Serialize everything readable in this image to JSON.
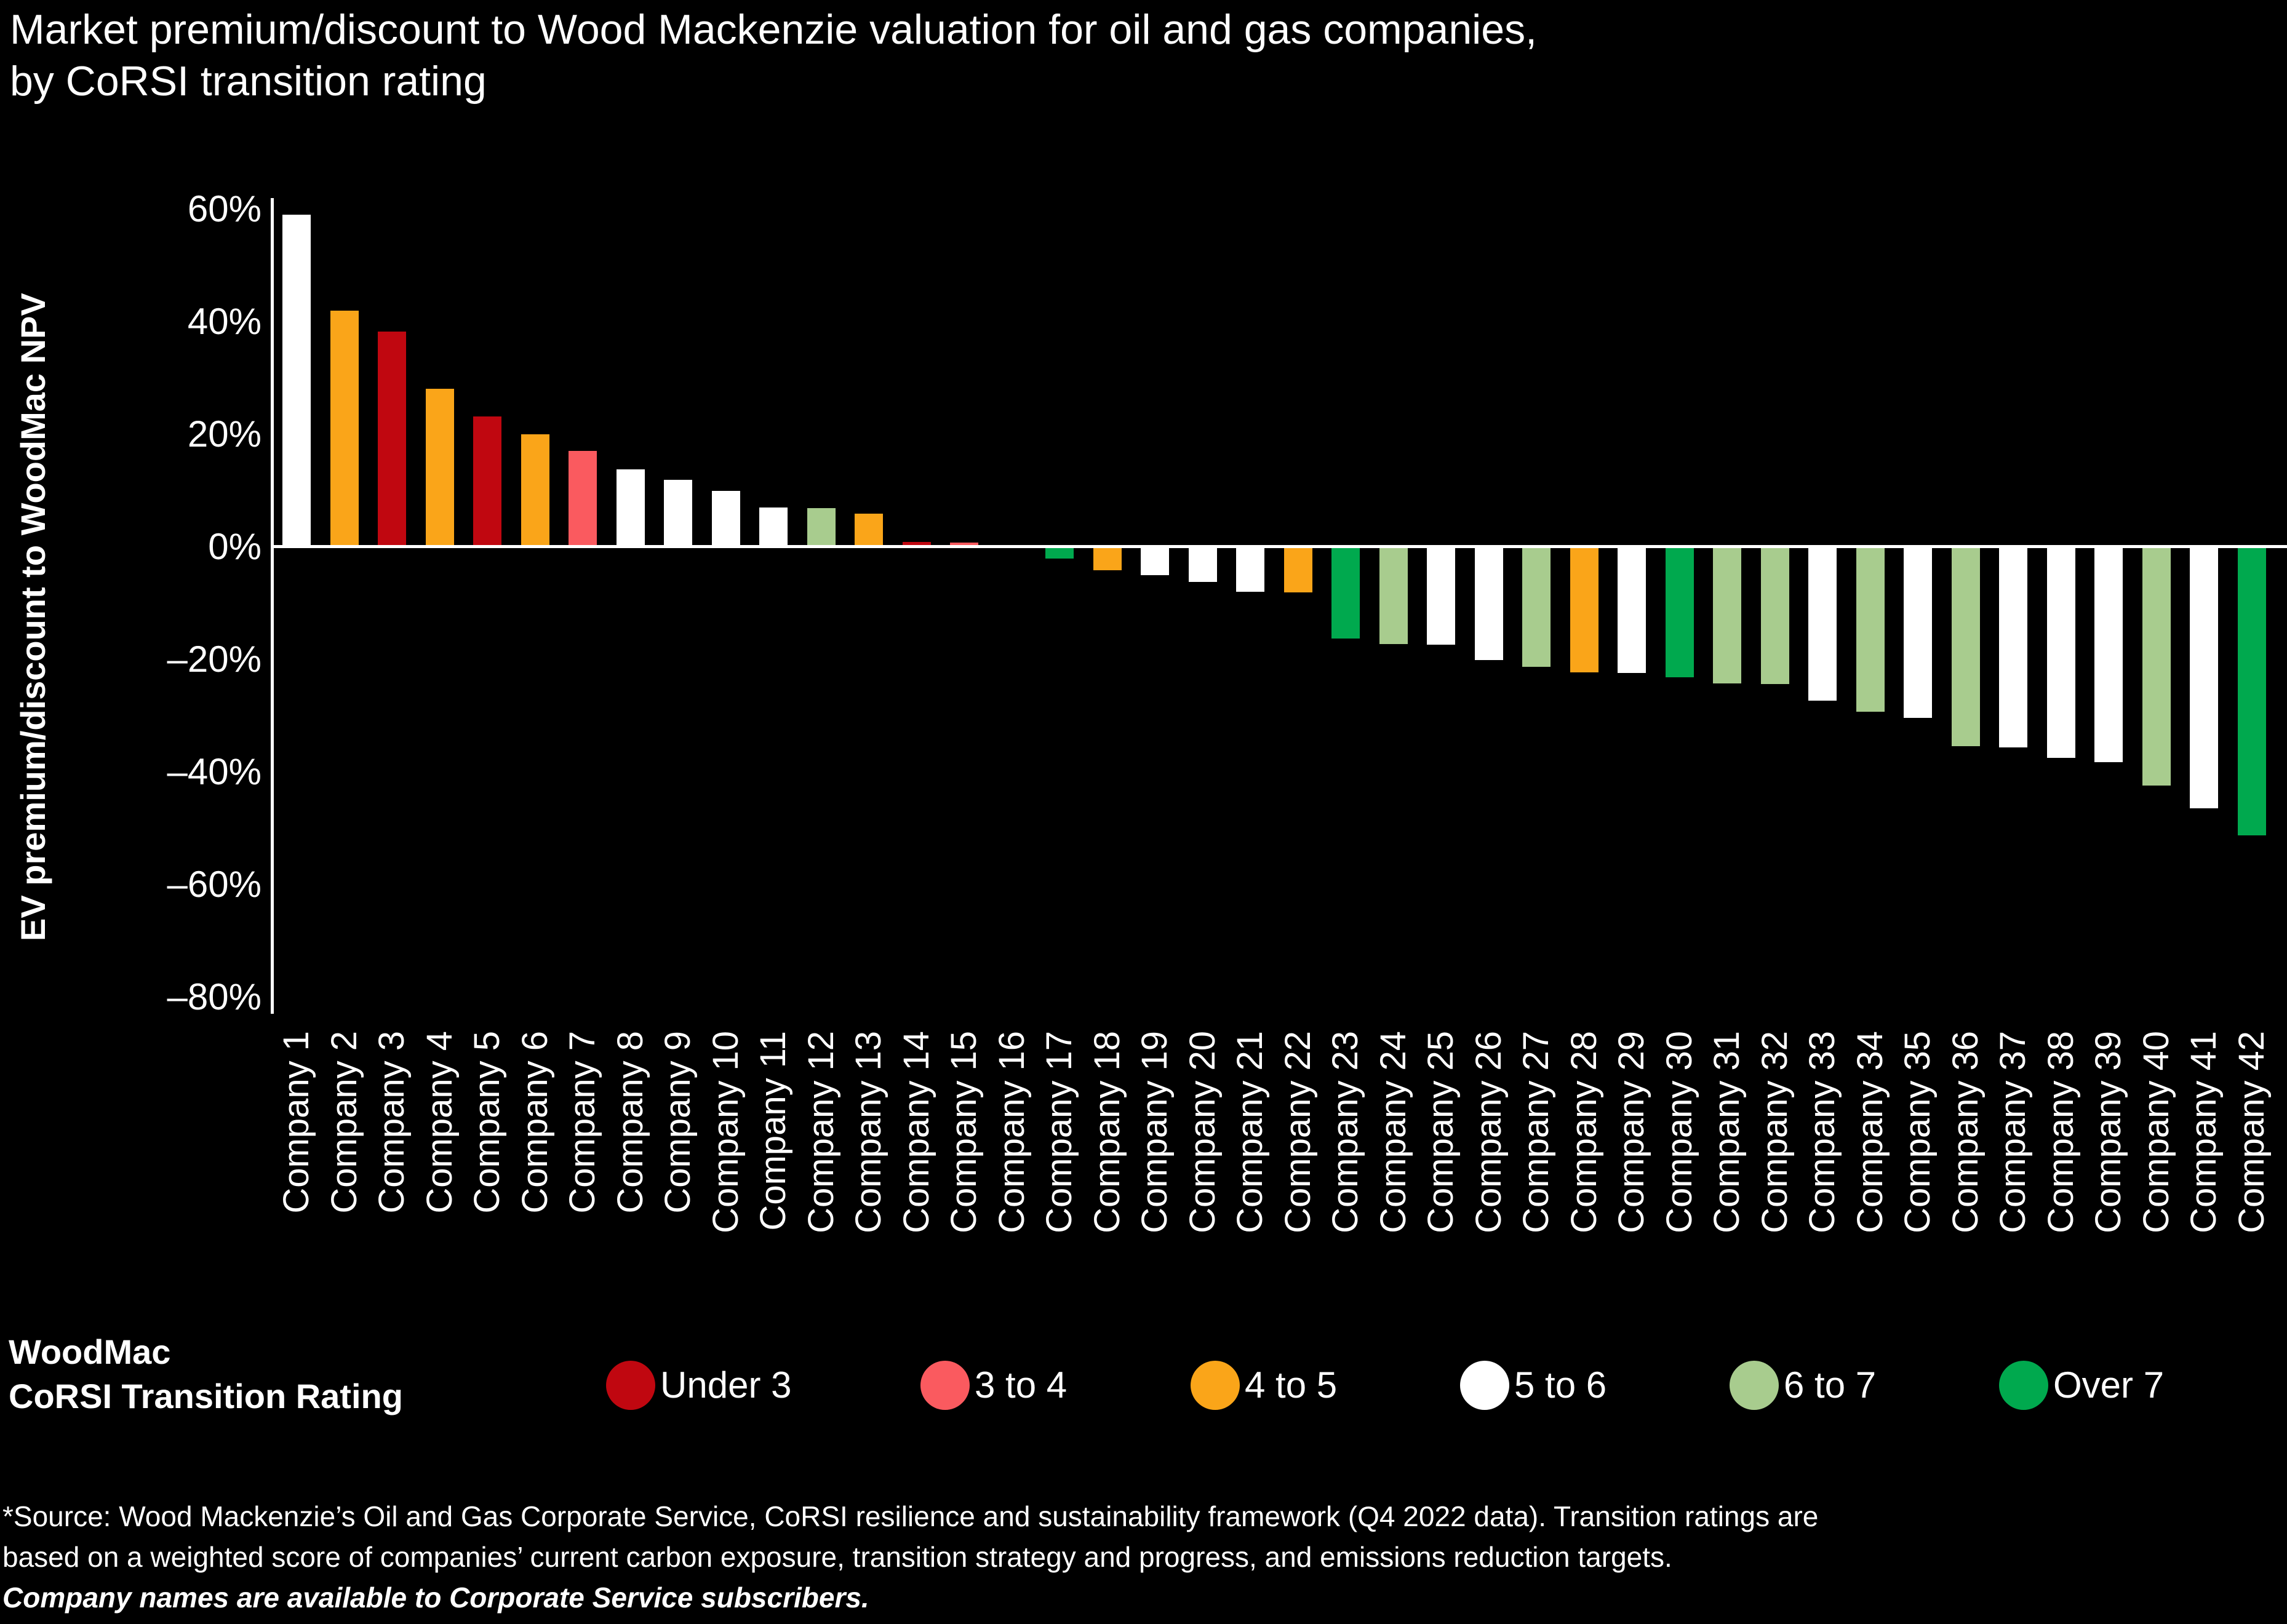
{
  "title_line1": "Market premium/discount to Wood Mackenzie valuation for oil and gas companies,",
  "title_line2": "by CoRSI transition rating",
  "chart_data": {
    "type": "bar",
    "title": "Market premium/discount to Wood Mackenzie valuation for oil and gas companies, by CoRSI transition rating",
    "xlabel": "",
    "ylabel": "EV premium/discount to WoodMac NPV",
    "ylim": [
      -80,
      60
    ],
    "grid": false,
    "legend_position": "bottom",
    "y_ticks": [
      {
        "label": "60%",
        "value": 60
      },
      {
        "label": "40%",
        "value": 40
      },
      {
        "label": "20%",
        "value": 20
      },
      {
        "label": "0%",
        "value": 0
      },
      {
        "label": "–20%",
        "value": -20
      },
      {
        "label": "–40%",
        "value": -40
      },
      {
        "label": "–60%",
        "value": -60
      },
      {
        "label": "–80%",
        "value": -80
      }
    ],
    "categories": [
      "Company 1",
      "Company 2",
      "Company 3",
      "Company 4",
      "Company 5",
      "Company 6",
      "Company 7",
      "Company 8",
      "Company 9",
      "Company 10",
      "Company 11",
      "Company 12",
      "Company 13",
      "Company 14",
      "Company 15",
      "Company 16",
      "Company 17",
      "Company 18",
      "Company 19",
      "Company 20",
      "Company 21",
      "Company 22",
      "Company 23",
      "Company 24",
      "Company 25",
      "Company 26",
      "Company 27",
      "Company 28",
      "Company 29",
      "Company 30",
      "Company 31",
      "Company 32",
      "Company 33",
      "Company 34",
      "Company 35",
      "Company 36",
      "Company 37",
      "Company 38",
      "Company 39",
      "Company 40",
      "Company 41",
      "Company 42"
    ],
    "values": [
      59,
      42,
      38.2,
      28.1,
      23.2,
      20,
      17,
      13.8,
      11.9,
      9.9,
      7,
      6.9,
      5.9,
      0.9,
      0.8,
      0,
      -2.1,
      -4.2,
      -5,
      -6.2,
      -8,
      -8.1,
      -16.3,
      -17.3,
      -17.4,
      -20.1,
      -21.3,
      -22.3,
      -22.4,
      -23.2,
      -24.3,
      -24.4,
      -27.3,
      -29.3,
      -30.4,
      -35.4,
      -35.6,
      -37.5,
      -38.3,
      -42.4,
      -46.4,
      -51.3
    ],
    "ratings": [
      "5 to 6",
      "4 to 5",
      "Under 3",
      "4 to 5",
      "Under 3",
      "4 to 5",
      "3 to 4",
      "5 to 6",
      "5 to 6",
      "5 to 6",
      "5 to 6",
      "6 to 7",
      "4 to 5",
      "Under 3",
      "3 to 4",
      "5 to 6",
      "Over 7",
      "4 to 5",
      "5 to 6",
      "5 to 6",
      "5 to 6",
      "4 to 5",
      "Over 7",
      "6 to 7",
      "5 to 6",
      "5 to 6",
      "6 to 7",
      "4 to 5",
      "5 to 6",
      "Over 7",
      "6 to 7",
      "6 to 7",
      "5 to 6",
      "6 to 7",
      "5 to 6",
      "6 to 7",
      "5 to 6",
      "5 to 6",
      "5 to 6",
      "6 to 7",
      "5 to 6",
      "Over 7"
    ],
    "rating_colors": {
      "Under 3": "#C00710",
      "3 to 4": "#FA5A5F",
      "4 to 5": "#FAA519",
      "5 to 6": "#FFFFFF",
      "6 to 7": "#A8CC8E",
      "Over 7": "#00A94E"
    }
  },
  "legend": {
    "title_line1": "WoodMac",
    "title_line2": "CoRSI Transition Rating",
    "items": [
      {
        "label": "Under 3",
        "color": "#C00710"
      },
      {
        "label": "3 to 4",
        "color": "#FA5A5F"
      },
      {
        "label": "4 to 5",
        "color": "#FAA519"
      },
      {
        "label": "5 to 6",
        "color": "#FFFFFF"
      },
      {
        "label": "6 to 7",
        "color": "#A8CC8E"
      },
      {
        "label": "Over 7",
        "color": "#00A94E"
      }
    ]
  },
  "footnote": {
    "line1": "*Source: Wood Mackenzie’s Oil and Gas Corporate Service, CoRSI resilience and sustainability framework (Q4 2022 data). Transition ratings are",
    "line2": "based on a weighted score of companies’ current carbon exposure, transition strategy and progress, and emissions reduction targets.",
    "line3": "Company names are available to Corporate Service subscribers."
  }
}
